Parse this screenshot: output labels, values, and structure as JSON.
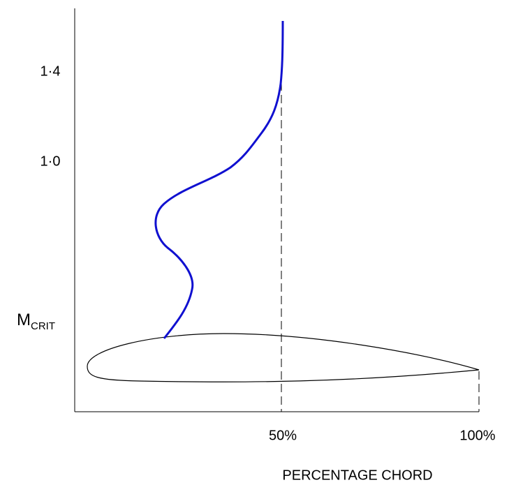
{
  "axis": {
    "y_labels": [
      "1·4",
      "1·0"
    ],
    "m": "M",
    "m_sub": "CRIT",
    "x_labels": [
      "50%",
      "100%"
    ],
    "x_title": "PERCENTAGE CHORD"
  }
}
